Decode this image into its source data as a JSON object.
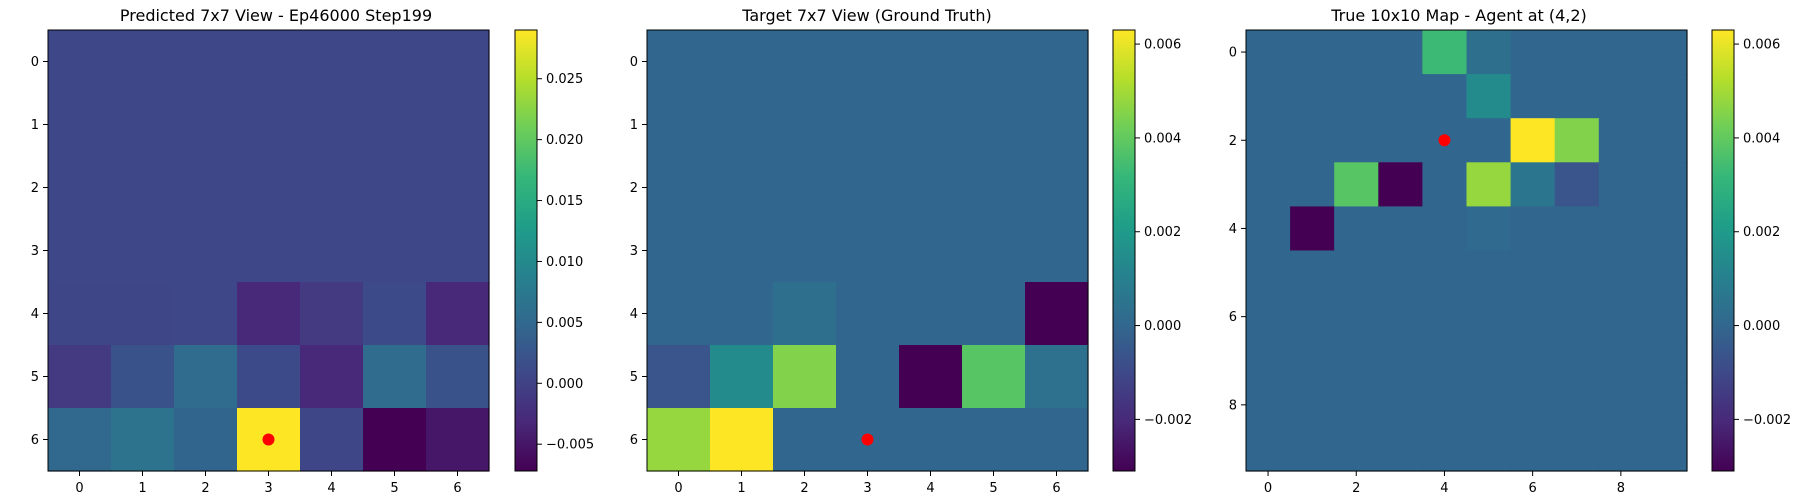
{
  "viridis": [
    "#440154",
    "#482878",
    "#3e4989",
    "#31688e",
    "#26828e",
    "#1f9e89",
    "#35b779",
    "#6ece58",
    "#b5de2b",
    "#fde725"
  ],
  "marker_color": "#ff0000",
  "chart_data": [
    {
      "type": "heatmap",
      "title": "Predicted 7x7 View - Ep46000 Step199",
      "xlabel": "",
      "ylabel": "",
      "grid": false,
      "rows": 7,
      "cols": 7,
      "x_ticks": [
        0,
        1,
        2,
        3,
        4,
        5,
        6
      ],
      "y_ticks": [
        0,
        1,
        2,
        3,
        4,
        5,
        6
      ],
      "clim": [
        -0.0072,
        0.029
      ],
      "colorbar_ticks": [
        -0.005,
        0.0,
        0.005,
        0.01,
        0.015,
        0.02,
        0.025
      ],
      "colorbar_labels": [
        "−0.005",
        "0.000",
        "0.005",
        "0.010",
        "0.015",
        "0.020",
        "0.025"
      ],
      "values": [
        [
          0.0007,
          0.0007,
          0.0007,
          0.0007,
          0.0007,
          0.0007,
          0.0007
        ],
        [
          0.0007,
          0.0007,
          0.0007,
          0.0007,
          0.0007,
          0.0007,
          0.0007
        ],
        [
          0.0007,
          0.0007,
          0.0007,
          0.0007,
          0.0007,
          0.0007,
          0.0007
        ],
        [
          0.0007,
          0.0007,
          0.0007,
          0.0007,
          0.0007,
          0.0007,
          0.0007
        ],
        [
          0.0005,
          0.0005,
          0.0007,
          -0.003,
          -0.001,
          0.001,
          -0.003
        ],
        [
          -0.001,
          0.002,
          0.0055,
          0.001,
          -0.003,
          0.0055,
          0.002
        ],
        [
          0.005,
          0.0065,
          0.0045,
          0.029,
          0.0005,
          -0.0072,
          -0.005
        ]
      ],
      "marker": {
        "x": 3,
        "y": 6
      }
    },
    {
      "type": "heatmap",
      "title": "Target 7x7 View (Ground Truth)",
      "xlabel": "",
      "ylabel": "",
      "grid": false,
      "rows": 7,
      "cols": 7,
      "x_ticks": [
        0,
        1,
        2,
        3,
        4,
        5,
        6
      ],
      "y_ticks": [
        0,
        1,
        2,
        3,
        4,
        5,
        6
      ],
      "clim": [
        -0.0031,
        0.0063
      ],
      "colorbar_ticks": [
        -0.002,
        0.0,
        0.002,
        0.004,
        0.006
      ],
      "colorbar_labels": [
        "−0.002",
        "0.000",
        "0.002",
        "0.004",
        "0.006"
      ],
      "values": [
        [
          0,
          0,
          0,
          0,
          0,
          0,
          0
        ],
        [
          0,
          0,
          0,
          0,
          0,
          0,
          0
        ],
        [
          0,
          0,
          0,
          0,
          0,
          0,
          0
        ],
        [
          0,
          0,
          0,
          0,
          0,
          0,
          0
        ],
        [
          0,
          0,
          0.0003,
          0,
          0,
          0,
          -0.0031
        ],
        [
          -0.0006,
          0.0014,
          0.0045,
          0,
          -0.0031,
          0.0038,
          0.0004
        ],
        [
          0.0048,
          0.0063,
          0,
          0,
          0,
          0,
          0
        ]
      ],
      "marker": {
        "x": 3,
        "y": 6
      }
    },
    {
      "type": "heatmap",
      "title": "True 10x10 Map - Agent at (4,2)",
      "xlabel": "",
      "ylabel": "",
      "grid": false,
      "rows": 10,
      "cols": 10,
      "x_ticks": [
        0,
        2,
        4,
        6,
        8
      ],
      "y_ticks": [
        0,
        2,
        4,
        6,
        8
      ],
      "clim": [
        -0.0031,
        0.0063
      ],
      "colorbar_ticks": [
        -0.002,
        0.0,
        0.002,
        0.004,
        0.006
      ],
      "colorbar_labels": [
        "−0.002",
        "0.000",
        "0.002",
        "0.004",
        "0.006"
      ],
      "values": [
        [
          0,
          0,
          0,
          0,
          0.0033,
          0.0003,
          0,
          0,
          0,
          0
        ],
        [
          0,
          0,
          0,
          0,
          0,
          0.0014,
          0,
          0,
          0,
          0
        ],
        [
          0,
          0,
          0,
          0,
          0,
          0,
          0.0063,
          0.0045,
          0,
          0
        ],
        [
          0,
          0,
          0.0038,
          -0.0031,
          0,
          0.0048,
          0.0006,
          -0.0006,
          0,
          0
        ],
        [
          0,
          -0.0031,
          0,
          0,
          0,
          0.0001,
          0,
          0,
          0,
          0
        ],
        [
          0,
          0,
          0,
          0,
          0,
          0,
          0,
          0,
          0,
          0
        ],
        [
          0,
          0,
          0,
          0,
          0,
          0,
          0,
          0,
          0,
          0
        ],
        [
          0,
          0,
          0,
          0,
          0,
          0,
          0,
          0,
          0,
          0
        ],
        [
          0,
          0,
          0,
          0,
          0,
          0,
          0,
          0,
          0,
          0
        ],
        [
          0,
          0,
          0,
          0,
          0,
          0,
          0,
          0,
          0,
          0
        ]
      ],
      "marker": {
        "x": 4,
        "y": 2
      }
    }
  ]
}
